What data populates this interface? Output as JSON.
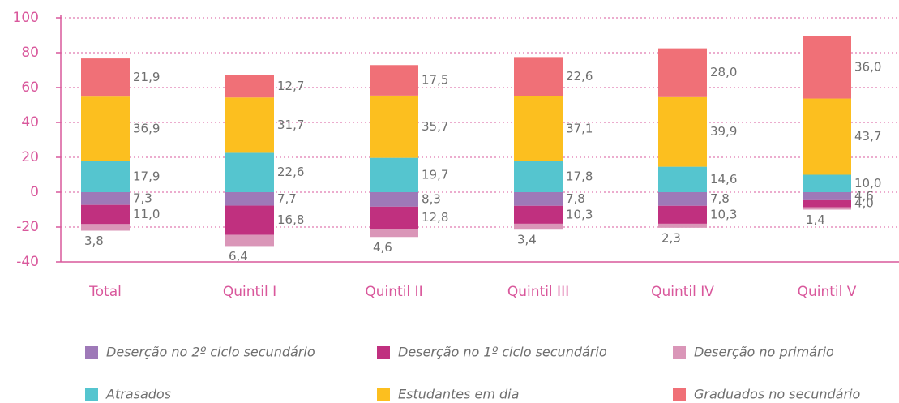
{
  "chart_data": {
    "type": "stacked_bar",
    "categories": [
      "Total",
      "Quintil I",
      "Quintil II",
      "Quintil III",
      "Quintil IV",
      "Quintil V"
    ],
    "series": [
      {
        "name": "Deserção no 2º ciclo secundário",
        "color": "#9e79b8",
        "values": [
          -7.3,
          -7.7,
          -8.3,
          -7.8,
          -7.8,
          -4.6
        ],
        "value_labels": [
          "7,3",
          "7,7",
          "8,3",
          "7,8",
          "7,8",
          "4,6"
        ]
      },
      {
        "name": "Deserção no 1º ciclo secundário",
        "color": "#c0307f",
        "values": [
          -11.0,
          -16.8,
          -12.8,
          -10.3,
          -10.3,
          -4.0
        ],
        "value_labels": [
          "11,0",
          "16,8",
          "12,8",
          "10,3",
          "10,3",
          "4,0"
        ]
      },
      {
        "name": "Deserção no primário",
        "color": "#da96b8",
        "values": [
          -3.8,
          -6.4,
          -4.6,
          -3.4,
          -2.3,
          -1.4
        ],
        "value_labels": [
          "3,8",
          "6,4",
          "4,6",
          "3,4",
          "2,3",
          "1,4"
        ]
      },
      {
        "name": "Atrasados",
        "color": "#55c5cf",
        "values": [
          17.9,
          22.6,
          19.7,
          17.8,
          14.6,
          10.0
        ],
        "value_labels": [
          "17,9",
          "22,6",
          "19,7",
          "17,8",
          "14,6",
          "10,0"
        ]
      },
      {
        "name": "Estudantes em dia",
        "color": "#fcbf1f",
        "values": [
          36.9,
          31.7,
          35.7,
          37.1,
          39.9,
          43.7
        ],
        "value_labels": [
          "36,9",
          "31,7",
          "35,7",
          "37,1",
          "39,9",
          "43,7"
        ]
      },
      {
        "name": "Graduados no secundário",
        "color": "#f07077",
        "values": [
          21.9,
          12.7,
          17.5,
          22.6,
          28.0,
          36.0
        ],
        "value_labels": [
          "21,9",
          "12,7",
          "17,5",
          "22,6",
          "28,0",
          "36,0"
        ]
      }
    ],
    "ylim": [
      -40,
      100
    ],
    "yticks": [
      -40,
      -20,
      0,
      20,
      40,
      60,
      80,
      100
    ],
    "grid": true
  }
}
